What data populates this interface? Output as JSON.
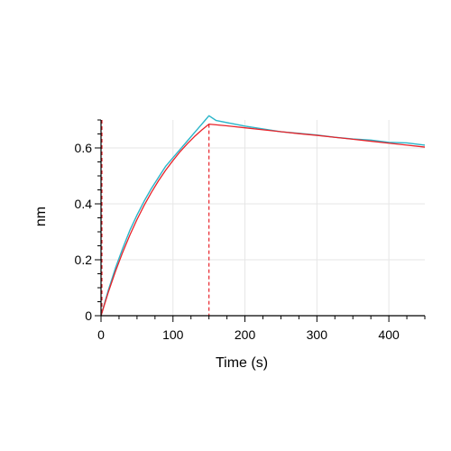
{
  "chart_data": {
    "type": "line",
    "xlabel": "Time (s)",
    "ylabel": "nm",
    "xlim": [
      0,
      450
    ],
    "ylim": [
      0,
      0.7
    ],
    "x_ticks": [
      0,
      100,
      200,
      300,
      400
    ],
    "x_tick_labels": [
      "0",
      "100",
      "200",
      "300",
      "400"
    ],
    "x_minor_step": 25,
    "y_ticks": [
      0,
      0.2,
      0.4,
      0.6
    ],
    "y_tick_labels": [
      "0",
      "0.2",
      "0.4",
      "0.6"
    ],
    "y_minor_step": 0.05,
    "grid": true,
    "vertical_markers": [
      0,
      150
    ],
    "series": [
      {
        "role": "measured",
        "color": "#2ab5c9",
        "x": [
          0,
          10,
          20,
          30,
          40,
          50,
          60,
          70,
          80,
          90,
          100,
          110,
          120,
          130,
          140,
          145,
          150,
          160,
          180,
          200,
          225,
          250,
          275,
          300,
          325,
          350,
          375,
          400,
          425,
          450
        ],
        "y": [
          0.0,
          0.09,
          0.17,
          0.24,
          0.305,
          0.36,
          0.41,
          0.455,
          0.495,
          0.535,
          0.565,
          0.595,
          0.625,
          0.655,
          0.685,
          0.7,
          0.715,
          0.698,
          0.688,
          0.678,
          0.668,
          0.658,
          0.652,
          0.646,
          0.638,
          0.632,
          0.628,
          0.62,
          0.618,
          0.61
        ]
      },
      {
        "role": "fit",
        "color": "#e8232a",
        "x": [
          0,
          10,
          20,
          30,
          40,
          50,
          60,
          70,
          80,
          90,
          100,
          110,
          120,
          130,
          140,
          150,
          175,
          200,
          225,
          250,
          275,
          300,
          325,
          350,
          375,
          400,
          425,
          450
        ],
        "y": [
          0.0,
          0.083,
          0.158,
          0.226,
          0.288,
          0.344,
          0.395,
          0.441,
          0.483,
          0.521,
          0.555,
          0.587,
          0.615,
          0.641,
          0.664,
          0.685,
          0.679,
          0.672,
          0.665,
          0.658,
          0.651,
          0.645,
          0.638,
          0.631,
          0.624,
          0.617,
          0.61,
          0.603
        ]
      }
    ]
  }
}
